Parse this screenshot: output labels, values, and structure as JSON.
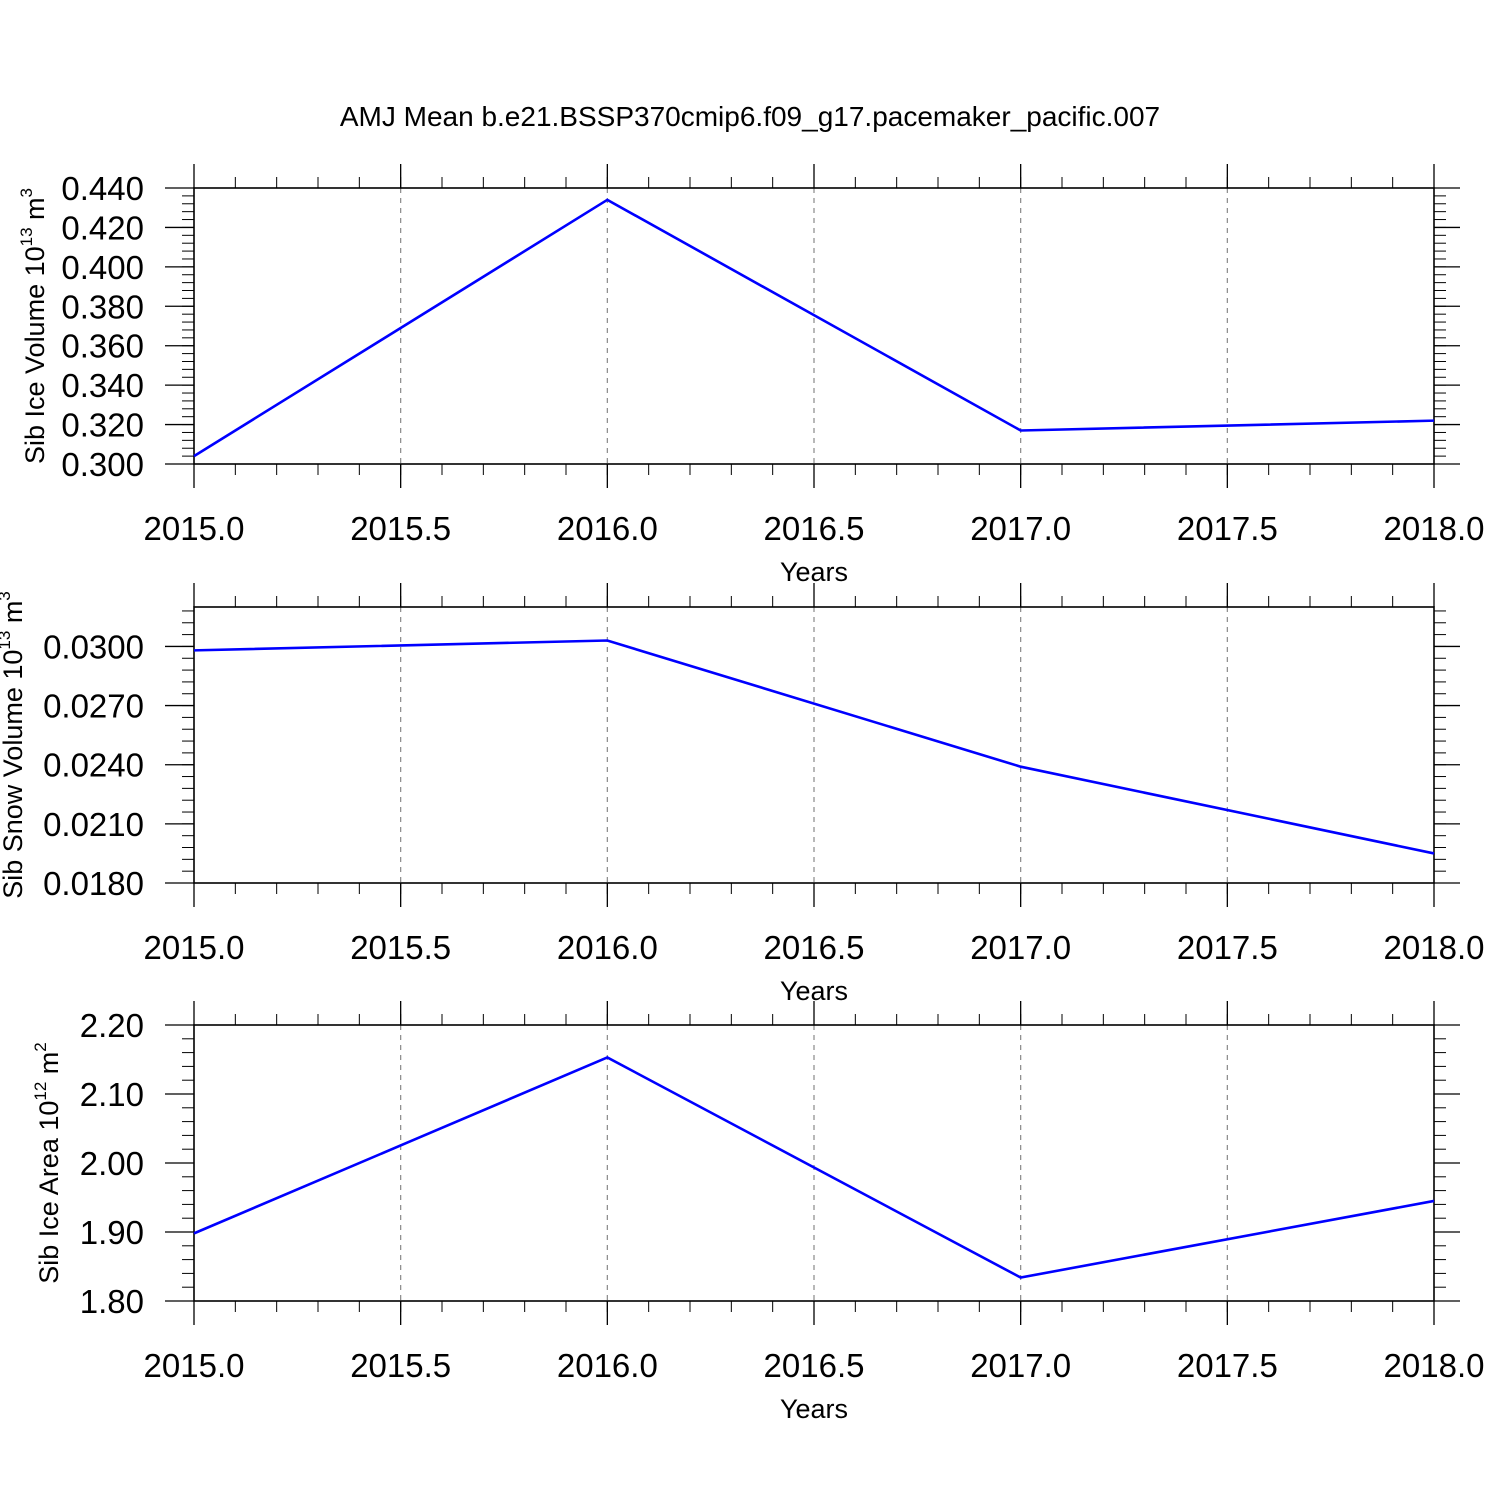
{
  "figure": {
    "title": "AMJ Mean b.e21.BSSP370cmip6.f09_g17.pacemaker_pacific.007",
    "line_color": "#0000ff",
    "grid_color": "#888888"
  },
  "chart_data": [
    {
      "type": "line",
      "xlabel": "Years",
      "ylabel": {
        "base": "Sib Ice Volume 10",
        "exp": "13",
        "unit": " m",
        "unit_exp": "3"
      },
      "x": [
        2015.0,
        2016.0,
        2017.0,
        2018.0
      ],
      "series": [
        {
          "values": [
            0.304,
            0.434,
            0.317,
            0.322
          ]
        }
      ],
      "xlim": [
        2015.0,
        2018.0
      ],
      "ylim": [
        0.3,
        0.44
      ],
      "xticks": [
        2015.0,
        2015.5,
        2016.0,
        2016.5,
        2017.0,
        2017.5,
        2018.0
      ],
      "xtick_labels": [
        "2015.0",
        "2015.5",
        "2016.0",
        "2016.5",
        "2017.0",
        "2017.5",
        "2018.0"
      ],
      "xminor_step": 0.1,
      "yticks": [
        0.3,
        0.32,
        0.34,
        0.36,
        0.38,
        0.4,
        0.42,
        0.44
      ],
      "ytick_labels": [
        "0.300",
        "0.320",
        "0.340",
        "0.360",
        "0.380",
        "0.400",
        "0.420",
        "0.440"
      ],
      "yminor_step": 0.004,
      "grid": "vertical-dashed"
    },
    {
      "type": "line",
      "xlabel": "Years",
      "ylabel": {
        "base": "Sib Snow Volume 10",
        "exp": "13",
        "unit": " m",
        "unit_exp": "3"
      },
      "x": [
        2015.0,
        2016.0,
        2017.0,
        2018.0
      ],
      "series": [
        {
          "values": [
            0.0298,
            0.0303,
            0.0239,
            0.0195
          ]
        }
      ],
      "xlim": [
        2015.0,
        2018.0
      ],
      "ylim": [
        0.018,
        0.032
      ],
      "xticks": [
        2015.0,
        2015.5,
        2016.0,
        2016.5,
        2017.0,
        2017.5,
        2018.0
      ],
      "xtick_labels": [
        "2015.0",
        "2015.5",
        "2016.0",
        "2016.5",
        "2017.0",
        "2017.5",
        "2018.0"
      ],
      "xminor_step": 0.1,
      "yticks": [
        0.018,
        0.021,
        0.024,
        0.027,
        0.03
      ],
      "ytick_labels": [
        "0.0180",
        "0.0210",
        "0.0240",
        "0.0270",
        "0.0300"
      ],
      "yminor_step": 0.0006,
      "grid": "vertical-dashed"
    },
    {
      "type": "line",
      "xlabel": "Years",
      "ylabel": {
        "base": "Sib Ice Area 10",
        "exp": "12",
        "unit": " m",
        "unit_exp": "2"
      },
      "x": [
        2015.0,
        2016.0,
        2017.0,
        2018.0
      ],
      "series": [
        {
          "values": [
            1.898,
            2.153,
            1.834,
            1.945
          ]
        }
      ],
      "xlim": [
        2015.0,
        2018.0
      ],
      "ylim": [
        1.8,
        2.2
      ],
      "xticks": [
        2015.0,
        2015.5,
        2016.0,
        2016.5,
        2017.0,
        2017.5,
        2018.0
      ],
      "xtick_labels": [
        "2015.0",
        "2015.5",
        "2016.0",
        "2016.5",
        "2017.0",
        "2017.5",
        "2018.0"
      ],
      "xminor_step": 0.1,
      "yticks": [
        1.8,
        1.9,
        2.0,
        2.1,
        2.2
      ],
      "ytick_labels": [
        "1.80",
        "1.90",
        "2.00",
        "2.10",
        "2.20"
      ],
      "yminor_step": 0.02,
      "grid": "vertical-dashed"
    }
  ]
}
